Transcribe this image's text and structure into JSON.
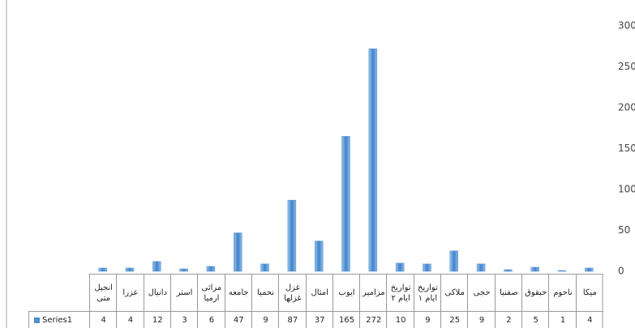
{
  "chart_data": {
    "type": "bar",
    "categories": [
      "انجیل متی",
      "عزرا",
      "دانیال",
      "استر",
      "مراثی ارمیا",
      "جامعه",
      "نحمیا",
      "غزل غزلها",
      "امثال",
      "ایوب",
      "مزامیر",
      "تواریخ ایام ۲",
      "تواریخ ایام ۱",
      "ملاکی",
      "حجی",
      "صفنیا",
      "حبقوق",
      "ناحوم",
      "میکا"
    ],
    "series": [
      {
        "name": "Series1",
        "color": "#4f8fd0",
        "values": [
          4,
          4,
          12,
          3,
          6,
          47,
          9,
          87,
          37,
          165,
          272,
          10,
          9,
          25,
          9,
          2,
          5,
          1,
          4
        ]
      }
    ],
    "ylim": [
      0,
      300
    ],
    "yticks": [
      0,
      50,
      100,
      150,
      200,
      250,
      300
    ],
    "grid": false
  }
}
